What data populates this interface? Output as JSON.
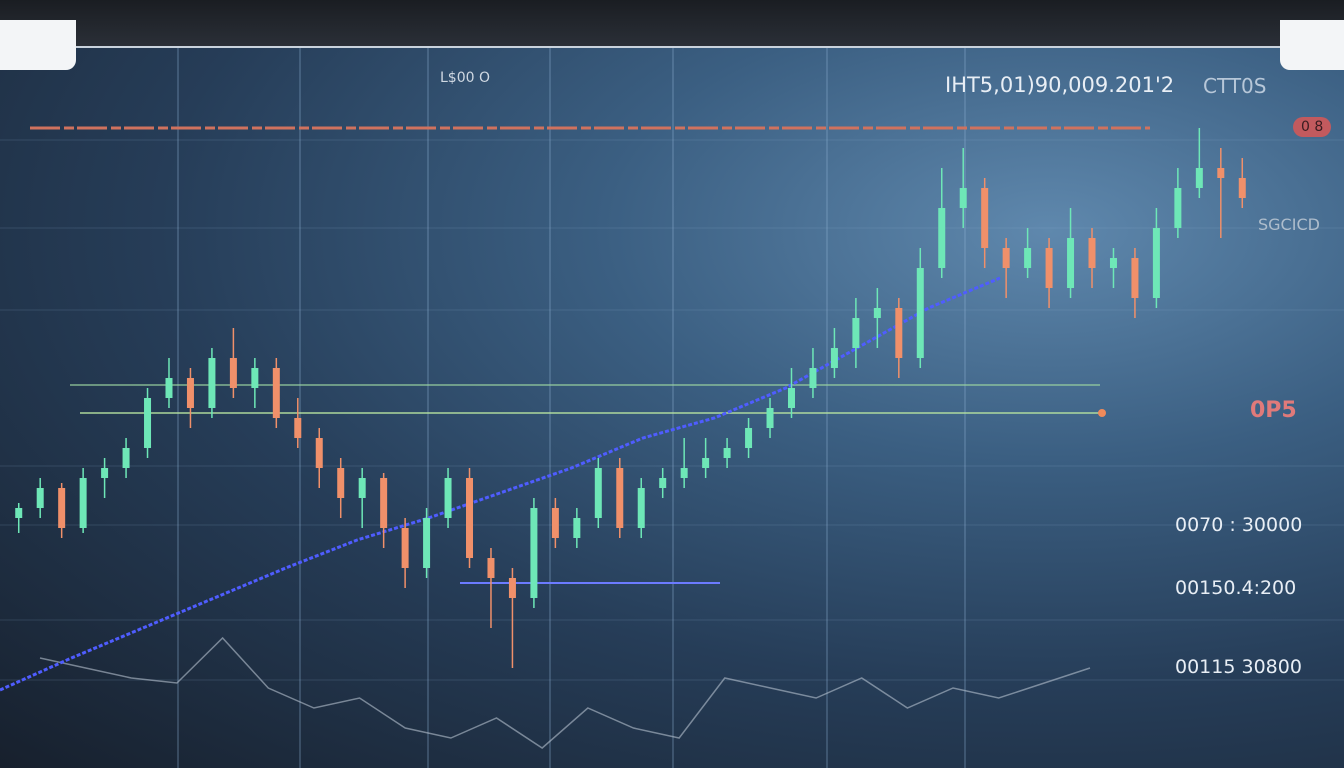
{
  "header": {
    "left_label": "L$00 O",
    "right_label": "IHT5,01)90,009.201'2",
    "right_code": "CTT0S"
  },
  "badges": {
    "top_badge": "0 8",
    "side_label": "SGCICD",
    "mid_badge": "0P5"
  },
  "price_labels": [
    "0070 : 30000",
    "00150.4:200",
    "00115 30800"
  ],
  "colors": {
    "bull": "#6ee7b7",
    "bear": "#f0906a",
    "neutral": "#f5d27a",
    "ma": "#4f5dff",
    "gridline": "#8fb3d4",
    "background": "#2c4a68"
  },
  "chart_data": {
    "type": "candlestick",
    "title": "",
    "xlabel": "",
    "ylabel": "",
    "grid": true,
    "candles": [
      [
        250,
        265,
        235,
        260
      ],
      [
        260,
        290,
        250,
        280
      ],
      [
        280,
        285,
        230,
        240
      ],
      [
        240,
        300,
        235,
        290
      ],
      [
        290,
        310,
        270,
        300
      ],
      [
        300,
        330,
        290,
        320
      ],
      [
        320,
        380,
        310,
        370
      ],
      [
        370,
        410,
        360,
        390
      ],
      [
        390,
        400,
        340,
        360
      ],
      [
        360,
        420,
        350,
        410
      ],
      [
        410,
        440,
        370,
        380
      ],
      [
        380,
        410,
        360,
        400
      ],
      [
        400,
        410,
        340,
        350
      ],
      [
        350,
        370,
        320,
        330
      ],
      [
        330,
        340,
        280,
        300
      ],
      [
        300,
        310,
        250,
        270
      ],
      [
        270,
        300,
        240,
        290
      ],
      [
        290,
        295,
        220,
        240
      ],
      [
        240,
        250,
        180,
        200
      ],
      [
        200,
        260,
        190,
        250
      ],
      [
        250,
        300,
        240,
        290
      ],
      [
        290,
        300,
        200,
        210
      ],
      [
        210,
        220,
        140,
        190
      ],
      [
        190,
        200,
        100,
        170
      ],
      [
        170,
        270,
        160,
        260
      ],
      [
        260,
        270,
        220,
        230
      ],
      [
        230,
        260,
        220,
        250
      ],
      [
        250,
        310,
        240,
        300
      ],
      [
        300,
        310,
        230,
        240
      ],
      [
        240,
        290,
        230,
        280
      ],
      [
        280,
        300,
        270,
        290
      ],
      [
        290,
        330,
        280,
        300
      ],
      [
        300,
        330,
        290,
        310
      ],
      [
        310,
        330,
        300,
        320
      ],
      [
        320,
        350,
        310,
        340
      ],
      [
        340,
        370,
        330,
        360
      ],
      [
        360,
        400,
        350,
        380
      ],
      [
        380,
        420,
        370,
        400
      ],
      [
        400,
        440,
        390,
        420
      ],
      [
        420,
        470,
        400,
        450
      ],
      [
        450,
        480,
        420,
        460
      ],
      [
        460,
        470,
        390,
        410
      ],
      [
        410,
        520,
        400,
        500
      ],
      [
        500,
        600,
        490,
        560
      ],
      [
        560,
        620,
        540,
        580
      ],
      [
        580,
        590,
        500,
        520
      ],
      [
        520,
        530,
        470,
        500
      ],
      [
        500,
        540,
        490,
        520
      ],
      [
        520,
        530,
        460,
        480
      ],
      [
        480,
        560,
        470,
        530
      ],
      [
        530,
        540,
        480,
        500
      ],
      [
        500,
        520,
        480,
        510
      ],
      [
        510,
        520,
        450,
        470
      ],
      [
        470,
        560,
        460,
        540
      ],
      [
        540,
        600,
        530,
        580
      ],
      [
        580,
        640,
        570,
        600
      ],
      [
        600,
        620,
        530,
        590
      ],
      [
        590,
        610,
        560,
        570
      ]
    ],
    "moving_average": [
      78,
      110,
      140,
      170,
      200,
      228,
      250,
      275,
      300,
      330,
      350,
      380,
      420,
      460,
      490
    ],
    "lower_line": [
      110,
      100,
      90,
      85,
      130,
      80,
      60,
      70,
      40,
      30,
      50,
      20,
      60,
      40,
      30,
      90,
      80,
      70,
      90,
      60,
      80,
      70,
      85,
      100
    ]
  }
}
